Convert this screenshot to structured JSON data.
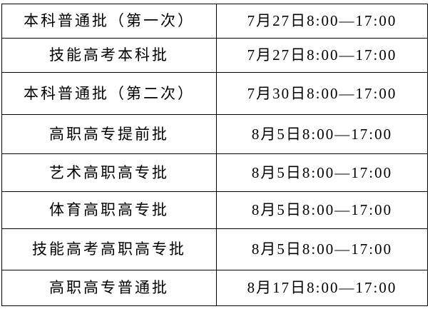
{
  "page": {
    "background_color": "#ffffff",
    "border_color": "#000000",
    "text_color": "#000000"
  },
  "table": {
    "description": "admission-batch-time-schedule",
    "columns": [
      "batch",
      "time"
    ],
    "rows": [
      {
        "batch": "本科普通批（第一次）",
        "time": "7月27日8:00—17:00"
      },
      {
        "batch": "技能高考本科批",
        "time": "7月27日8:00—17:00"
      },
      {
        "batch": "本科普通批（第二次）",
        "time": "7月30日8:00—17:00"
      },
      {
        "batch": "高职高专提前批",
        "time": "8月5日8:00—17:00"
      },
      {
        "batch": "艺术高职高专批",
        "time": "8月5日8:00—17:00"
      },
      {
        "batch": "体育高职高专批",
        "time": "8月5日8:00—17:00"
      },
      {
        "batch": "技能高考高职高专批",
        "time": "8月5日8:00—17:00"
      },
      {
        "batch": "高职高专普通批",
        "time": "8月17日8:00—17:00"
      }
    ]
  }
}
